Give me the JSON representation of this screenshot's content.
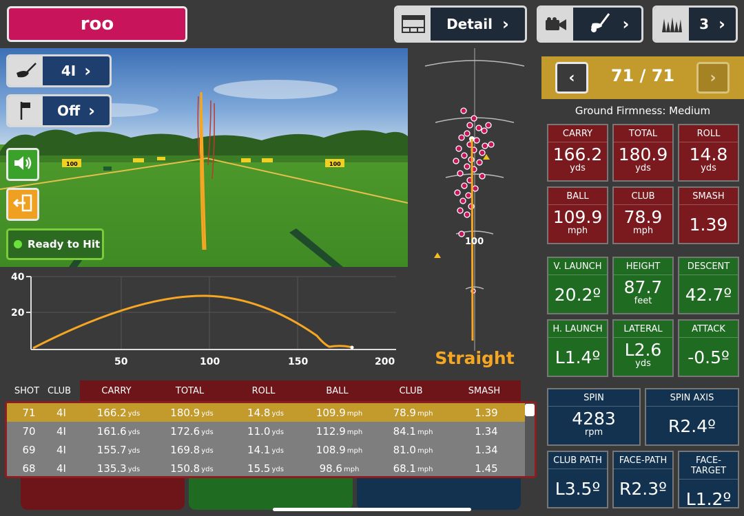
{
  "header": {
    "player_name": "roo",
    "view_label": "Detail",
    "shots_label": "3"
  },
  "viewport": {
    "club_label": "4I",
    "pin_label": "Off",
    "ready_label": "Ready to Hit",
    "targets": [
      "100",
      "100"
    ]
  },
  "trajectory": {
    "y_ticks": [
      "40",
      "20"
    ],
    "x_ticks": [
      "50",
      "100",
      "150",
      "200"
    ],
    "line_color": "#f5a623"
  },
  "topdown": {
    "distance_label": "100",
    "shape_label": "Straight"
  },
  "nav": {
    "shot_counter": "71 / 71",
    "prev_icon": "chevron-left-icon",
    "next_icon": "chevron-right-icon"
  },
  "ground_firmness": "Ground Firmness: Medium",
  "metrics": {
    "carry": {
      "title": "CARRY",
      "value": "166.2",
      "unit": "yds"
    },
    "total": {
      "title": "TOTAL",
      "value": "180.9",
      "unit": "yds"
    },
    "roll": {
      "title": "ROLL",
      "value": "14.8",
      "unit": "yds"
    },
    "ball": {
      "title": "BALL",
      "value": "109.9",
      "unit": "mph"
    },
    "club": {
      "title": "CLUB",
      "value": "78.9",
      "unit": "mph"
    },
    "smash": {
      "title": "SMASH",
      "value": "1.39"
    },
    "v_launch": {
      "title": "V. LAUNCH",
      "value": "20.2º"
    },
    "height": {
      "title": "HEIGHT",
      "value": "87.7",
      "unit": "feet"
    },
    "descent": {
      "title": "DESCENT",
      "value": "42.7º"
    },
    "h_launch": {
      "title": "H. LAUNCH",
      "value": "L1.4º"
    },
    "lateral": {
      "title": "LATERAL",
      "value": "L2.6",
      "unit": "yds"
    },
    "attack": {
      "title": "ATTACK",
      "value": "-0.5º"
    },
    "spin": {
      "title": "SPIN",
      "value": "4283",
      "unit": "rpm"
    },
    "spin_axis": {
      "title": "SPIN AXIS",
      "value": "R2.4º"
    },
    "club_path": {
      "title": "CLUB PATH",
      "value": "L3.5º"
    },
    "face_path": {
      "title": "FACE-PATH",
      "value": "R2.3º"
    },
    "face_target": {
      "title": "FACE-TARGET",
      "value": "L1.2º"
    }
  },
  "table": {
    "headers": [
      "SHOT",
      "CLUB",
      "CARRY",
      "TOTAL",
      "ROLL",
      "BALL",
      "CLUB",
      "SMASH"
    ],
    "rows": [
      {
        "shot": "71",
        "club": "4I",
        "carry": "166.2",
        "total": "180.9",
        "roll": "14.8",
        "ball": "109.9",
        "clubspd": "78.9",
        "smash": "1.39"
      },
      {
        "shot": "70",
        "club": "4I",
        "carry": "161.6",
        "total": "172.6",
        "roll": "11.0",
        "ball": "112.9",
        "clubspd": "84.1",
        "smash": "1.34"
      },
      {
        "shot": "69",
        "club": "4I",
        "carry": "155.7",
        "total": "169.8",
        "roll": "14.1",
        "ball": "108.9",
        "clubspd": "81.0",
        "smash": "1.34"
      },
      {
        "shot": "68",
        "club": "4I",
        "carry": "135.3",
        "total": "150.8",
        "roll": "15.5",
        "ball": "98.6",
        "clubspd": "68.1",
        "smash": "1.45"
      }
    ],
    "units": {
      "yds": "yds",
      "mph": "mph"
    }
  }
}
